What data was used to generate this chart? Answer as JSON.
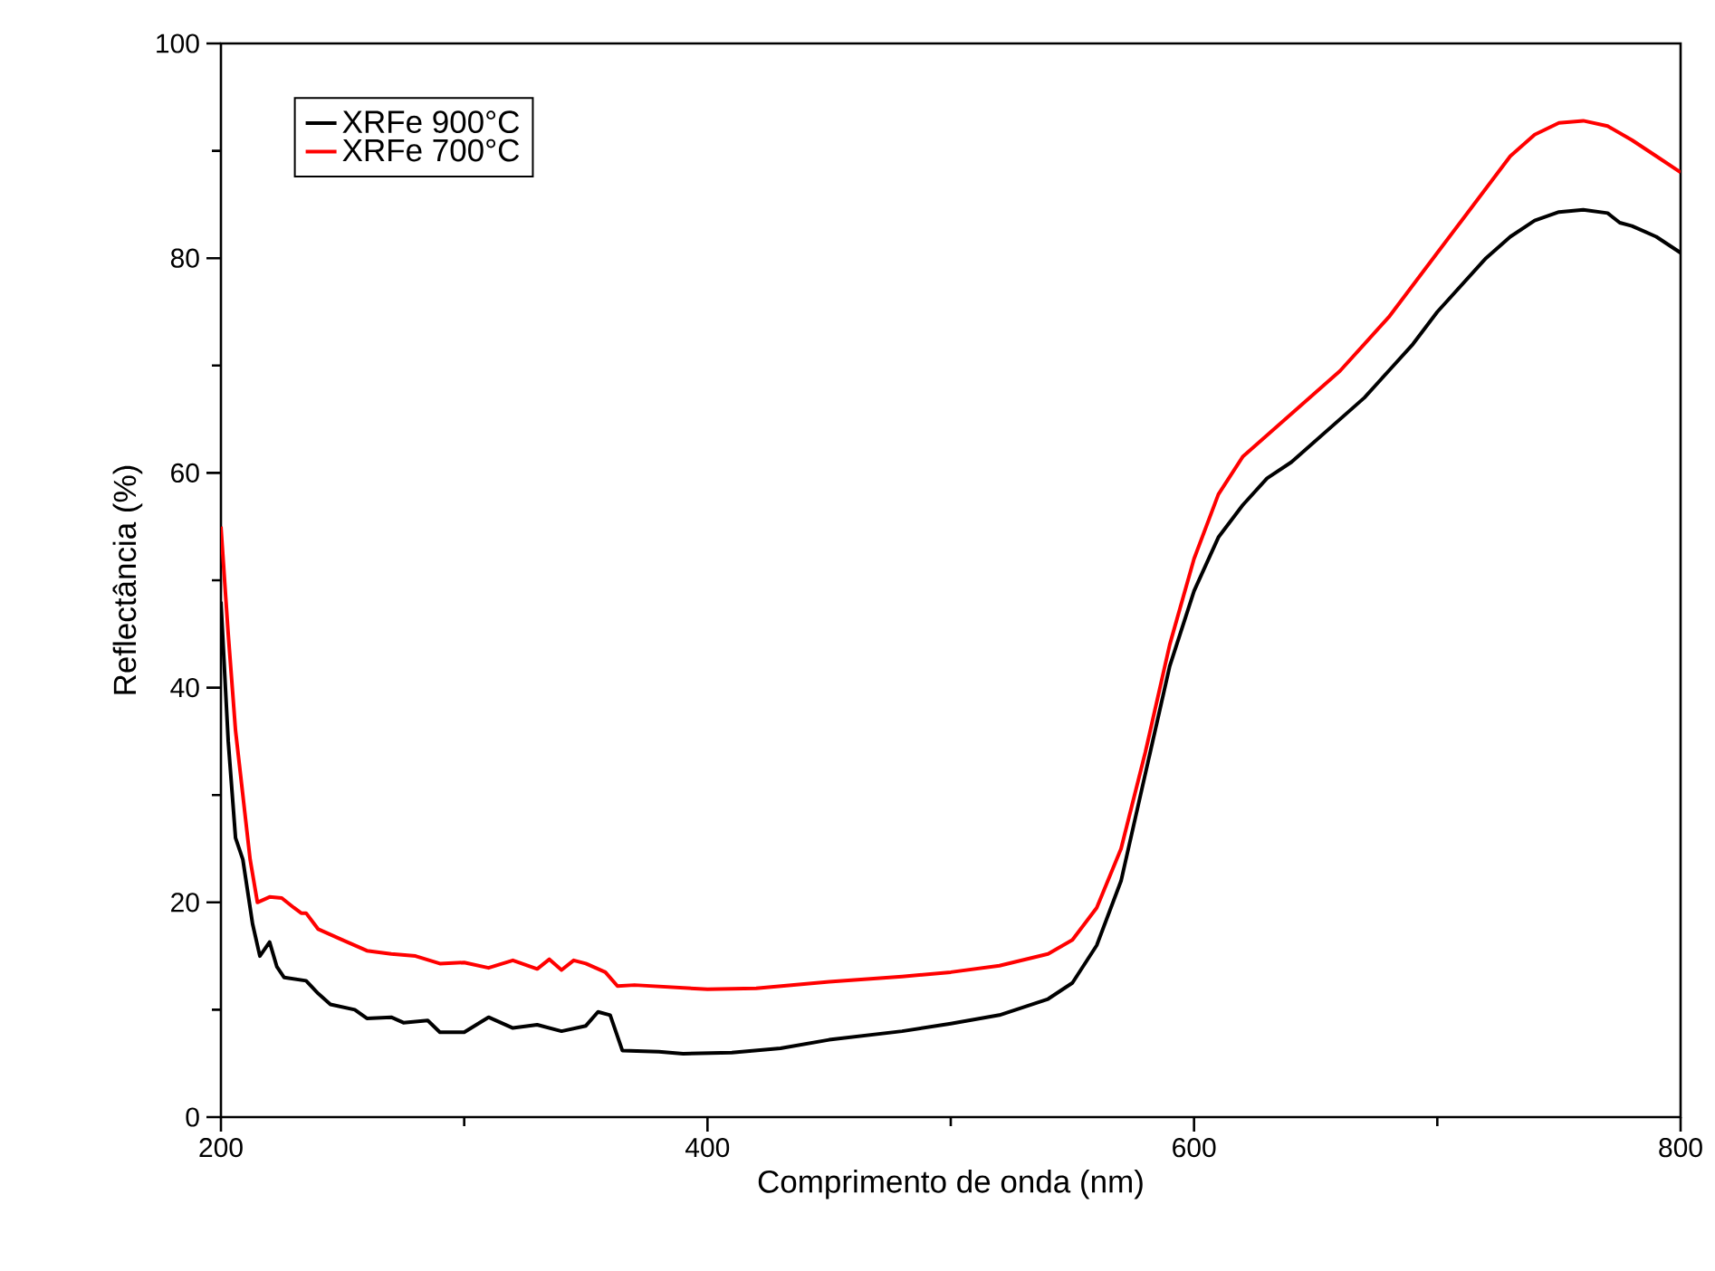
{
  "chart_data": {
    "type": "line",
    "xlabel": "Comprimento de onda (nm)",
    "ylabel": "Reflectância (%)",
    "xlim": [
      200,
      800
    ],
    "ylim": [
      0,
      100
    ],
    "xticks": [
      200,
      400,
      600,
      800
    ],
    "yticks": [
      0,
      20,
      40,
      60,
      80,
      100
    ],
    "legend": "top left",
    "grid": false,
    "marker": "none",
    "line_style": "solid",
    "series": [
      {
        "name": "XRFe 900°C",
        "color": "#000000",
        "x": [
          200,
          203,
          206,
          209,
          213,
          216,
          220,
          223,
          226,
          235,
          240,
          245,
          255,
          260,
          270,
          275,
          285,
          290,
          300,
          310,
          320,
          330,
          340,
          350,
          355,
          360,
          365,
          380,
          390,
          410,
          430,
          450,
          480,
          500,
          520,
          540,
          550,
          560,
          570,
          580,
          590,
          600,
          610,
          620,
          630,
          640,
          650,
          660,
          670,
          680,
          690,
          700,
          710,
          720,
          730,
          740,
          750,
          760,
          770,
          775,
          780,
          790,
          800
        ],
        "values": [
          48,
          35,
          26,
          24,
          18,
          15,
          16.3,
          14,
          13,
          12.7,
          11.5,
          10.5,
          10,
          9.2,
          9.3,
          8.8,
          9,
          7.9,
          7.9,
          9.3,
          8.3,
          8.6,
          8.0,
          8.5,
          9.8,
          9.5,
          6.2,
          6.1,
          5.9,
          6,
          6.4,
          7.2,
          8,
          8.7,
          9.5,
          11,
          12.5,
          16,
          22,
          32,
          42,
          49,
          54,
          57,
          59.5,
          61,
          63,
          65,
          67,
          69.5,
          72,
          75,
          77.5,
          80,
          82,
          83.5,
          84.3,
          84.5,
          84.2,
          83.3,
          83,
          82,
          80.5
        ]
      },
      {
        "name": "XRFe 700°C",
        "color": "#ff0000",
        "x": [
          200,
          203,
          206,
          209,
          212,
          215,
          220,
          225,
          230,
          233,
          235,
          240,
          250,
          260,
          270,
          280,
          290,
          300,
          310,
          320,
          330,
          335,
          340,
          345,
          350,
          358,
          363,
          370,
          400,
          420,
          450,
          480,
          500,
          520,
          540,
          550,
          560,
          570,
          580,
          590,
          600,
          610,
          620,
          630,
          640,
          650,
          660,
          670,
          680,
          690,
          700,
          710,
          720,
          730,
          740,
          750,
          760,
          770,
          780,
          790,
          800
        ],
        "values": [
          55,
          45,
          36,
          30,
          24,
          20,
          20.5,
          20.4,
          19.5,
          19,
          19,
          17.5,
          16.5,
          15.5,
          15.2,
          15,
          14.3,
          14.4,
          13.9,
          14.6,
          13.8,
          14.7,
          13.7,
          14.6,
          14.3,
          13.5,
          12.2,
          12.3,
          11.9,
          12,
          12.6,
          13.1,
          13.5,
          14.1,
          15.2,
          16.5,
          19.5,
          25,
          34,
          44,
          52,
          58,
          61.5,
          63.5,
          65.5,
          67.5,
          69.5,
          72,
          74.5,
          77.5,
          80.5,
          83.5,
          86.5,
          89.5,
          91.5,
          92.6,
          92.8,
          92.3,
          91,
          89.5,
          88
        ]
      }
    ]
  }
}
